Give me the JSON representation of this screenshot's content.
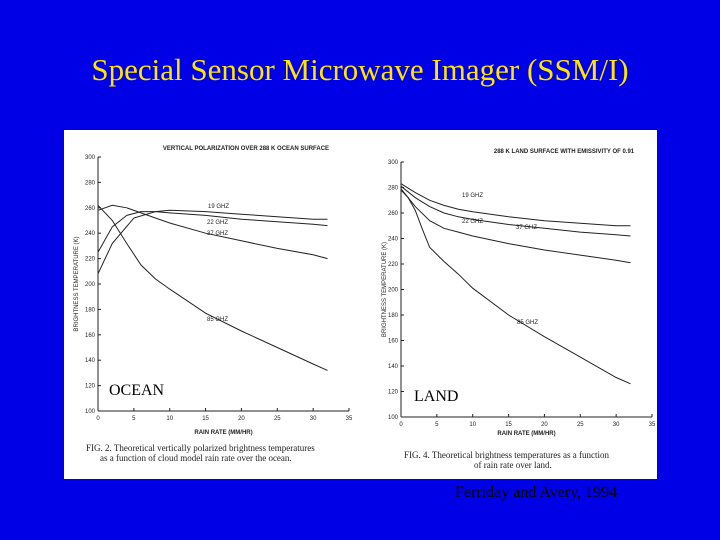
{
  "slide": {
    "title": "Special Sensor Microwave Imager (SSM/I)",
    "citation": "Ferriday and Avery, 1994"
  },
  "colors": {
    "background": "#0000e6",
    "title": "#ffe600",
    "panel": "#ffffff",
    "ink": "#222222"
  },
  "chart_data": [
    {
      "type": "line",
      "title": "VERTICAL POLARIZATION OVER 288 K OCEAN SURFACE",
      "xlabel": "RAIN RATE (MM/HR)",
      "ylabel": "BRIGHTNESS TEMPERATURE (K)",
      "xlim": [
        0,
        35
      ],
      "ylim": [
        100,
        300
      ],
      "xticks": [
        0,
        5,
        10,
        15,
        20,
        25,
        30,
        35
      ],
      "yticks": [
        100,
        120,
        140,
        160,
        180,
        200,
        220,
        240,
        260,
        280,
        300
      ],
      "grid": false,
      "tag": "OCEAN",
      "caption": [
        "FIG. 2. Theoretical vertically polarized brightness temperatures",
        "as a function of cloud model rain rate over the ocean."
      ],
      "series": [
        {
          "name": "19 GHZ",
          "x": [
            0,
            2,
            5,
            8,
            10,
            15,
            20,
            25,
            30,
            32
          ],
          "y": [
            208,
            232,
            252,
            257,
            258,
            257,
            255,
            253,
            251,
            251
          ]
        },
        {
          "name": "22 GHZ",
          "x": [
            0,
            2,
            4,
            6,
            8,
            10,
            15,
            20,
            25,
            30,
            32
          ],
          "y": [
            225,
            245,
            254,
            257,
            257,
            256,
            254,
            251,
            249,
            247,
            246
          ]
        },
        {
          "name": "37 GHZ",
          "x": [
            0,
            2,
            4,
            6,
            8,
            10,
            15,
            20,
            25,
            30,
            32
          ],
          "y": [
            258,
            262,
            260,
            256,
            252,
            248,
            240,
            234,
            228,
            223,
            220
          ]
        },
        {
          "name": "85 GHZ",
          "x": [
            0,
            2,
            4,
            6,
            8,
            10,
            15,
            20,
            25,
            30,
            32
          ],
          "y": [
            262,
            250,
            232,
            215,
            204,
            196,
            177,
            163,
            150,
            137,
            132
          ]
        }
      ]
    },
    {
      "type": "line",
      "title": "288 K LAND SURFACE WITH EMISSIVITY OF 0.91",
      "xlabel": "RAIN RATE (MM/HR)",
      "ylabel": "BRIGHTNESS TEMPERATURE (K)",
      "xlim": [
        0,
        35
      ],
      "ylim": [
        100,
        300
      ],
      "xticks": [
        0,
        5,
        10,
        15,
        20,
        25,
        30,
        35
      ],
      "yticks": [
        100,
        120,
        140,
        160,
        180,
        200,
        220,
        240,
        260,
        280,
        300
      ],
      "grid": false,
      "tag": "LAND",
      "caption": [
        "FIG. 4. Theoretical brightness temperatures as a function",
        "of rain rate over land."
      ],
      "series": [
        {
          "name": "19 GHZ",
          "x": [
            0,
            2,
            4,
            6,
            8,
            10,
            15,
            20,
            25,
            30,
            32
          ],
          "y": [
            283,
            276,
            270,
            266,
            263,
            261,
            257,
            254,
            252,
            250,
            250
          ]
        },
        {
          "name": "22 GHZ",
          "x": [
            0,
            2,
            4,
            6,
            8,
            10,
            15,
            20,
            25,
            30,
            32
          ],
          "y": [
            281,
            272,
            265,
            260,
            257,
            255,
            251,
            248,
            245,
            243,
            242
          ]
        },
        {
          "name": "37 GHZ",
          "x": [
            0,
            2,
            4,
            6,
            8,
            10,
            15,
            20,
            25,
            30,
            32
          ],
          "y": [
            279,
            265,
            254,
            248,
            245,
            242,
            236,
            231,
            227,
            223,
            221
          ]
        },
        {
          "name": "85 GHZ",
          "x": [
            0,
            1,
            2,
            3,
            4,
            6,
            8,
            10,
            15,
            20,
            25,
            30,
            32
          ],
          "y": [
            278,
            272,
            262,
            247,
            233,
            222,
            212,
            201,
            180,
            163,
            147,
            131,
            126
          ]
        }
      ]
    }
  ]
}
